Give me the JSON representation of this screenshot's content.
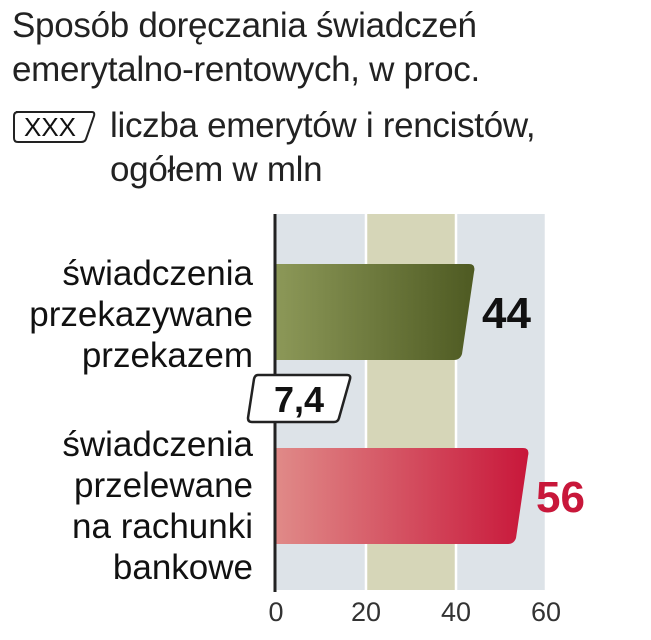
{
  "title": {
    "line1": "Sposób doręczania świadczeń",
    "line2": "emerytalno-rentowych, w proc."
  },
  "legend": {
    "key_text": "XXX",
    "text_line1": "liczba emerytów i rencistów,",
    "text_line2": "ogółem w mln"
  },
  "colors": {
    "bar1_dark": "#4e5a22",
    "bar1_light": "#8c9858",
    "bar2_dark": "#c8173a",
    "bar2_light": "#e08a88",
    "value2": "#c8173a",
    "plot_bg": "#dde3e8",
    "highlight_band": "#d6d6b8"
  },
  "chart_data": {
    "type": "bar",
    "orientation": "horizontal",
    "categories": [
      [
        "świadczenia",
        "przekazywane",
        "przekazem"
      ],
      [
        "świadczenia",
        "przelewane",
        "na rachunki",
        "bankowe"
      ]
    ],
    "values": [
      44,
      56
    ],
    "value_labels": [
      "44",
      "56"
    ],
    "total_label": "7,4",
    "xlim": [
      0,
      60
    ],
    "xticks": [
      0,
      20,
      40,
      60
    ],
    "xtick_labels": [
      "0",
      "20",
      "40",
      "60"
    ],
    "grid": true,
    "legend": "top-left"
  }
}
